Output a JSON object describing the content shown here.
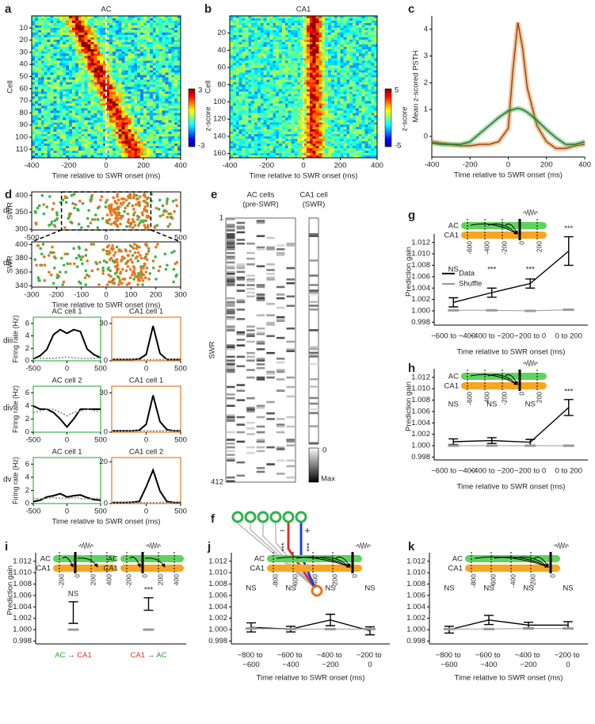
{
  "chart_data": [
    {
      "panel": "a",
      "type": "heatmap",
      "title": "AC",
      "title_color": "#2aa02a",
      "xlabel": "Time relative to SWR onset (ms)",
      "ylabel": "Cell",
      "xlim": [
        -400,
        400
      ],
      "xticks": [
        -400,
        -200,
        0,
        200,
        400
      ],
      "ylim": [
        0,
        117
      ],
      "y_reversed": true,
      "yticks": [
        10,
        20,
        30,
        40,
        50,
        60,
        70,
        80,
        90,
        100,
        110
      ],
      "colorbar": {
        "label": "z-score",
        "ticks": [
          3,
          -3
        ]
      }
    },
    {
      "panel": "b",
      "type": "heatmap",
      "title": "CA1",
      "title_color": "#e0302a",
      "xlabel": "Time relative to SWR onset (ms)",
      "ylabel": "Cell",
      "xlim": [
        -400,
        400
      ],
      "xticks": [
        -400,
        -200,
        0,
        200,
        400
      ],
      "ylim": [
        0,
        165
      ],
      "y_reversed": true,
      "yticks": [
        20,
        40,
        60,
        80,
        100,
        120,
        140,
        160
      ],
      "colorbar": {
        "label": "z-score",
        "ticks": [
          5,
          -5
        ]
      }
    },
    {
      "panel": "c",
      "type": "line",
      "xlabel": "Time relative to SWR onset (ms)",
      "ylabel": "Mean z-scored PSTH",
      "x": [
        -400,
        -350,
        -300,
        -250,
        -200,
        -150,
        -100,
        -50,
        0,
        25,
        50,
        75,
        100,
        150,
        200,
        250,
        300,
        350,
        400
      ],
      "xlim": [
        -400,
        400
      ],
      "xticks": [
        -400,
        -200,
        0,
        200,
        400
      ],
      "ylim": [
        -0.77,
        4.5
      ],
      "yticks": [
        0,
        1,
        2,
        3,
        4
      ],
      "series": [
        {
          "color": "#e8771e",
          "values": [
            -0.2,
            -0.25,
            -0.3,
            -0.35,
            -0.35,
            -0.3,
            -0.3,
            -0.2,
            0.3,
            2.5,
            4.25,
            3.3,
            1.8,
            0.4,
            -0.2,
            -0.45,
            -0.45,
            -0.35,
            -0.3
          ]
        },
        {
          "color": "#3cb44b",
          "values": [
            -0.25,
            -0.3,
            -0.3,
            -0.3,
            -0.2,
            0.1,
            0.4,
            0.7,
            0.95,
            1.0,
            1.05,
            1.0,
            0.9,
            0.6,
            0.25,
            -0.05,
            -0.3,
            -0.3,
            -0.2
          ]
        }
      ]
    },
    {
      "panel": "d",
      "sublabel": "di",
      "type": "raster",
      "ylabel": "SWR",
      "xlim": [
        -500,
        500
      ],
      "xticks": [
        -500,
        0,
        500
      ],
      "ylim": [
        298,
        410
      ],
      "yticks": [
        300,
        350,
        400
      ],
      "colors": [
        "#3cb44b",
        "#e8771e"
      ]
    },
    {
      "sublabel": "dii",
      "type": "raster",
      "ylabel": "SWR",
      "xlabel": "Time relative to SWR onset (ms)",
      "xlim": [
        -300,
        300
      ],
      "xticks": [
        -300,
        -200,
        -100,
        0,
        100,
        200,
        300
      ],
      "ylim": [
        338,
        404
      ],
      "yticks": [
        340,
        360,
        380,
        400
      ],
      "colors": [
        "#3cb44b",
        "#e8771e"
      ]
    },
    {
      "sublabel": "diii",
      "type": "rate-pair",
      "ylabel": "Firing rate (Hz)",
      "x": [
        -500,
        -400,
        -300,
        -200,
        -100,
        0,
        100,
        200,
        300,
        400,
        500
      ],
      "xlim": [
        -500,
        500
      ],
      "plots": [
        {
          "title": "AC cell 1",
          "color": "#3cb44b",
          "xticks": [
            -500,
            0,
            500
          ],
          "ylim": [
            0,
            7
          ],
          "yticks": [
            0,
            2,
            4,
            6
          ],
          "series": [
            {
              "color": "#000000",
              "values": [
                0.3,
                0.8,
                1.8,
                4.2,
                5.0,
                4.4,
                5.0,
                4.7,
                1.9,
                1.0,
                0.5
              ]
            },
            {
              "color": "#888888",
              "values": [
                0.5,
                0.4,
                0.4,
                0.4,
                0.5,
                0.6,
                0.5,
                0.4,
                0.4,
                0.4,
                0.5
              ]
            }
          ]
        },
        {
          "title": "CA1 cell 1",
          "color": "#e8771e",
          "xticks": [
            0,
            500
          ],
          "ylim": [
            0,
            35
          ],
          "yticks": [
            0,
            30
          ],
          "series": [
            {
              "color": "#000000",
              "values": [
                1,
                1,
                1,
                1,
                1.5,
                5,
                28,
                6,
                1,
                1,
                1
              ]
            },
            {
              "color": "#888888",
              "values": [
                1,
                1,
                1,
                1,
                1,
                1,
                1,
                1,
                1,
                1,
                1
              ]
            }
          ]
        }
      ]
    },
    {
      "sublabel": "div",
      "type": "rate-pair",
      "ylabel": "Firing rate (Hz)",
      "x": [
        -500,
        -400,
        -300,
        -200,
        -100,
        0,
        100,
        200,
        300,
        400,
        500
      ],
      "xlim": [
        -500,
        500
      ],
      "plots": [
        {
          "title": "AC cell 2",
          "color": "#3cb44b",
          "xticks": [
            -500,
            0,
            500
          ],
          "ylim": [
            0,
            7
          ],
          "yticks": [
            0,
            2,
            4,
            6
          ],
          "series": [
            {
              "color": "#000000",
              "values": [
                4,
                3.5,
                3.5,
                3,
                2,
                0.8,
                2,
                3.5,
                3.5,
                3.5,
                3.5
              ]
            },
            {
              "color": "#888888",
              "values": [
                3,
                3.2,
                3.5,
                3.5,
                3,
                2.5,
                3,
                3.2,
                3.5,
                3.3,
                3.2
              ]
            }
          ]
        },
        {
          "title": "CA1 cell 1",
          "color": "#e8771e",
          "xticks": [
            0,
            500
          ],
          "ylim": [
            0,
            35
          ],
          "yticks": [
            0,
            30
          ],
          "series": [
            {
              "color": "#000000",
              "values": [
                1,
                1,
                1,
                1,
                1.5,
                6,
                28,
                8,
                2,
                1,
                1
              ]
            },
            {
              "color": "#888888",
              "values": [
                1,
                1,
                1,
                1,
                1,
                1,
                1,
                1,
                1,
                1,
                1
              ]
            }
          ]
        }
      ]
    },
    {
      "sublabel": "dv",
      "type": "rate-pair",
      "ylabel": "Firing rate (Hz)",
      "xlabel": "Time relative to SWR onset (ms)",
      "x": [
        -500,
        -400,
        -300,
        -200,
        -100,
        0,
        100,
        200,
        300,
        400,
        500
      ],
      "xlim": [
        -500,
        500
      ],
      "plots": [
        {
          "title": "AC cell 1",
          "color": "#3cb44b",
          "xticks": [
            -500,
            0,
            500
          ],
          "ylim": [
            0,
            7
          ],
          "yticks": [
            0,
            2,
            4,
            6
          ],
          "series": [
            {
              "color": "#000000",
              "values": [
                0.3,
                0.5,
                1.0,
                1.2,
                1.5,
                1.0,
                1.2,
                1.3,
                0.9,
                0.6,
                0.5
              ]
            },
            {
              "color": "#888888",
              "values": [
                0.8,
                0.7,
                0.8,
                0.9,
                0.8,
                0.8,
                0.9,
                0.8,
                0.7,
                0.8,
                0.8
              ]
            }
          ]
        },
        {
          "title": "CA1 cell 2",
          "color": "#e8771e",
          "xticks": [
            0,
            500
          ],
          "ylim": [
            0,
            22
          ],
          "yticks": [
            0,
            20
          ],
          "series": [
            {
              "color": "#000000",
              "values": [
                0.5,
                0.5,
                0.5,
                0.6,
                1,
                8,
                16,
                6,
                1,
                0.5,
                0.5
              ]
            },
            {
              "color": "#888888",
              "values": [
                0.5,
                0.5,
                0.5,
                0.5,
                0.5,
                0.5,
                0.5,
                0.5,
                0.5,
                0.5,
                0.5
              ]
            }
          ]
        }
      ]
    },
    {
      "panel": "e",
      "type": "matrix",
      "groups": [
        {
          "title": "AC cells",
          "subtitle": "(pre-SWR)",
          "color": "#2aa02a"
        },
        {
          "title": "CA1 cell",
          "subtitle": "(SWR)",
          "color": "#e0302a"
        }
      ],
      "ylabel": "SWR",
      "yticks": [
        1,
        412
      ],
      "colorbar": {
        "top": 0,
        "bottom": "Max"
      }
    },
    {
      "panel": "f",
      "type": "diagram",
      "annotations": [
        "−",
        "***",
        "+",
        "***"
      ]
    },
    {
      "panel": "g",
      "type": "errorline",
      "xlabel": "Time relative to SWR onset (ms)",
      "ylabel": "Prediction gain",
      "legend": "upper left",
      "insets": [
        {
          "rows": [
            "AC",
            "CA1"
          ],
          "ticks": [
            -600,
            -400,
            -200,
            0,
            200
          ]
        }
      ],
      "categories": [
        "−600 to −400",
        "−400 to −200",
        "−200 to 0",
        "0 to 200"
      ],
      "annotations": [
        "NS",
        "***",
        "***",
        "***"
      ],
      "ylim": [
        0.9975,
        1.0135
      ],
      "yticks": [
        0.998,
        {
          "value": 1,
          "label": "1.000"
        },
        1.002,
        1.004,
        1.006,
        1.008,
        {
          "value": 1.01,
          "label": "1.010"
        },
        1.012
      ],
      "series": [
        {
          "name": "Data",
          "color": "#000000",
          "values": [
            1.0015,
            1.0032,
            1.0048,
            1.0105
          ],
          "errors": [
            0.0008,
            0.0008,
            0.0008,
            0.0025
          ]
        },
        {
          "name": "Shuffle",
          "color": "#999999",
          "values": [
            1.0001,
            1.0001,
            1.0,
            1.0002
          ]
        }
      ]
    },
    {
      "panel": "h",
      "type": "errorline",
      "xlabel": "Time relative to SWR onset (ms)",
      "ylabel": "Prediction gain",
      "insets": [
        {
          "rows": [
            "AC",
            "CA1"
          ],
          "ticks": [
            -600,
            -400,
            -200,
            0,
            200
          ]
        }
      ],
      "categories": [
        "−600 to −400",
        "−400 to −200",
        "−200 to 0",
        "0 to 200"
      ],
      "annotations": [
        "NS",
        "NS",
        "NS",
        "***"
      ],
      "ylim": [
        0.9975,
        1.0135
      ],
      "yticks": [
        0.998,
        {
          "value": 1,
          "label": "1.000"
        },
        1.002,
        1.004,
        1.006,
        1.008,
        {
          "value": 1.01,
          "label": "1.010"
        },
        1.012
      ],
      "series": [
        {
          "color": "#000000",
          "values": [
            1.0007,
            1.0009,
            1.0006,
            1.0067
          ],
          "errors": [
            0.0005,
            0.0005,
            0.0005,
            0.0014
          ]
        },
        {
          "color": "#999999",
          "values": [
            1.0,
            1.0,
            1.0,
            1.0
          ]
        }
      ]
    },
    {
      "panel": "i",
      "type": "errorbar",
      "ylabel": "Prediction gain",
      "insets": [
        {
          "rows": [
            "AC",
            "CA1"
          ],
          "ticks": [
            -200,
            0,
            200,
            400
          ]
        },
        {
          "rows": [
            "AC",
            "CA1"
          ],
          "ticks": [
            -200,
            0,
            200,
            400
          ]
        }
      ],
      "categories": [
        "AC → CA1",
        "CA1 → AC"
      ],
      "annotations": [
        "NS",
        "***"
      ],
      "ylim": [
        0.9975,
        1.0135
      ],
      "yticks": [
        0.998,
        {
          "value": 1,
          "label": "1.000"
        },
        1.002,
        1.004,
        1.006,
        1.008,
        {
          "value": 1.01,
          "label": "1.010"
        },
        1.012
      ],
      "series": [
        {
          "color": "#000000",
          "values": [
            1.003,
            1.0045
          ],
          "errors": [
            0.0019,
            0.0011
          ]
        },
        {
          "color": "#999999",
          "values": [
            1.0,
            1.0
          ]
        }
      ]
    },
    {
      "panel": "j",
      "type": "errorline",
      "xlabel": "Time relative to SWR onset (ms)",
      "insets": [
        {
          "rows": [
            "AC",
            "CA1"
          ],
          "ticks": [
            -800,
            -600,
            -400,
            -200,
            0
          ]
        }
      ],
      "categories": [
        "−800 to −600",
        "−600 to −400",
        "−400 to −200",
        "−200 to 0"
      ],
      "annotations": [
        "NS",
        "NS",
        "NS",
        "NS"
      ],
      "ylim": [
        0.9975,
        1.0135
      ],
      "yticks": [
        0.998,
        {
          "value": 1,
          "label": "1.000"
        },
        1.002,
        1.004,
        1.006,
        1.008,
        {
          "value": 1.01,
          "label": "1.010"
        },
        1.012
      ],
      "series": [
        {
          "color": "#000000",
          "values": [
            1.0004,
            1.0001,
            1.0017,
            0.9998
          ],
          "errors": [
            0.0008,
            0.0005,
            0.001,
            0.0007
          ]
        },
        {
          "color": "#999999",
          "values": [
            1.0002,
            1.0001,
            1.0001,
            1.0001
          ]
        }
      ]
    },
    {
      "panel": "k",
      "type": "errorline",
      "xlabel": "Time relative to SWR onset (ms)",
      "insets": [
        {
          "rows": [
            "AC",
            "CA1"
          ],
          "ticks": [
            -800,
            -600,
            -400,
            -200,
            0
          ]
        }
      ],
      "categories": [
        "−800 to −600",
        "−600 to −400",
        "−400 to −200",
        "−200 to 0"
      ],
      "annotations": [
        "NS",
        "NS",
        "NS",
        "NS"
      ],
      "ylim": [
        0.9975,
        1.0135
      ],
      "yticks": [
        0.998,
        {
          "value": 1,
          "label": "1.000"
        },
        1.002,
        1.004,
        1.006,
        1.008,
        {
          "value": 1.01,
          "label": "1.010"
        },
        1.012
      ],
      "series": [
        {
          "color": "#000000",
          "values": [
            1.0,
            1.0017,
            1.0008,
            1.0008
          ],
          "errors": [
            0.0006,
            0.0008,
            0.0005,
            0.0006
          ]
        },
        {
          "color": "#999999",
          "values": [
            1.0001,
            1.0001,
            1.0002,
            1.0002
          ]
        }
      ]
    }
  ]
}
